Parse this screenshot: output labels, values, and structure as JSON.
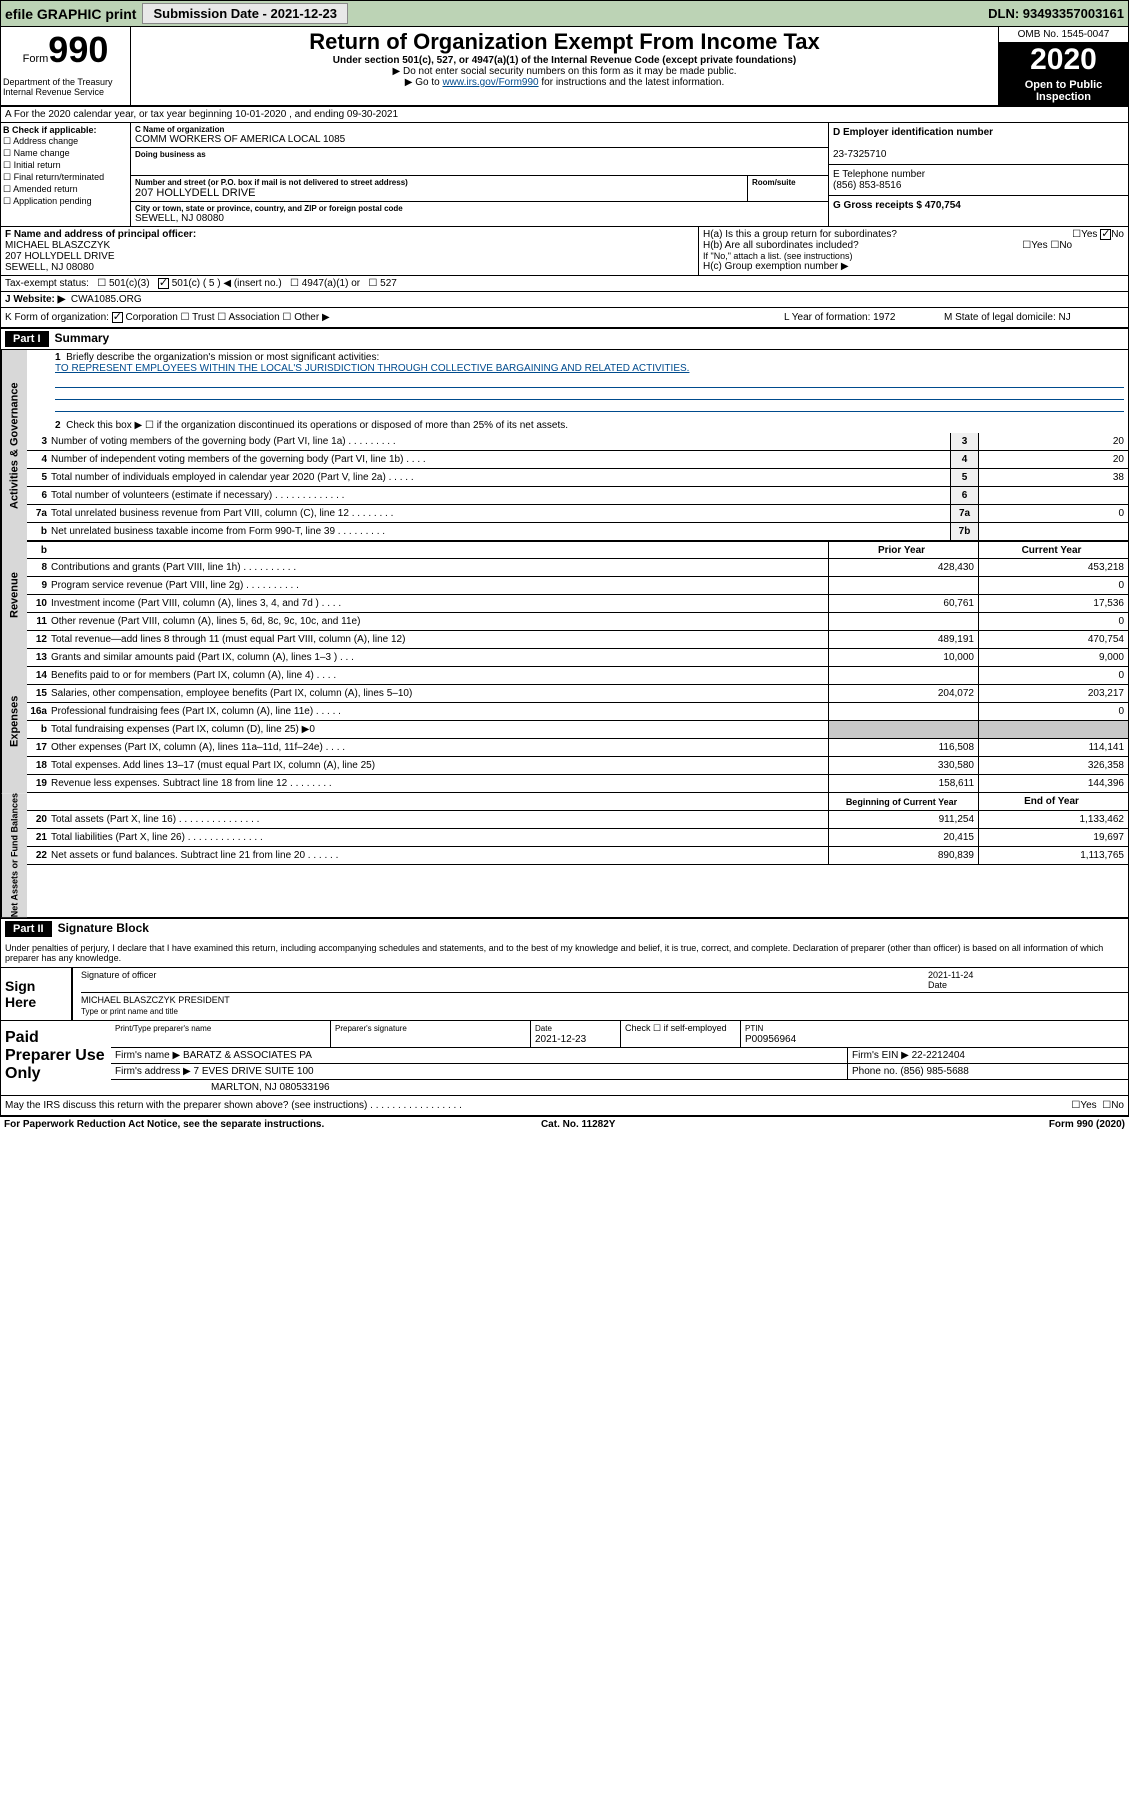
{
  "topbar": {
    "efile": "efile GRAPHIC print",
    "submission_btn": "Submission Date - 2021-12-23",
    "dln": "DLN: 93493357003161"
  },
  "header": {
    "form_label": "Form",
    "form_num": "990",
    "dept": "Department of the Treasury\nInternal Revenue Service",
    "title": "Return of Organization Exempt From Income Tax",
    "sub": "Under section 501(c), 527, or 4947(a)(1) of the Internal Revenue Code (except private foundations)",
    "note1": "▶ Do not enter social security numbers on this form as it may be made public.",
    "note2_pre": "▶ Go to ",
    "note2_link": "www.irs.gov/Form990",
    "note2_post": " for instructions and the latest information.",
    "omb": "OMB No. 1545-0047",
    "year": "2020",
    "open": "Open to Public Inspection"
  },
  "row_a": "A For the 2020 calendar year, or tax year beginning 10-01-2020    , and ending 09-30-2021",
  "sec_b": {
    "check_label": "B Check if applicable:",
    "checks": [
      "Address change",
      "Name change",
      "Initial return",
      "Final return/terminated",
      "Amended return",
      "Application pending"
    ],
    "c_label": "C Name of organization",
    "c_name": "COMM WORKERS OF AMERICA LOCAL 1085",
    "dba_label": "Doing business as",
    "addr_label": "Number and street (or P.O. box if mail is not delivered to street address)",
    "addr": "207 HOLLYDELL DRIVE",
    "room_label": "Room/suite",
    "city_label": "City or town, state or province, country, and ZIP or foreign postal code",
    "city": "SEWELL, NJ  08080",
    "d_label": "D Employer identification number",
    "d_val": "23-7325710",
    "e_label": "E Telephone number",
    "e_val": "(856) 853-8516",
    "g_label": "G Gross receipts $ 470,754"
  },
  "row_fh": {
    "f_label": "F Name and address of principal officer:",
    "f_name": "MICHAEL BLASZCZYK",
    "f_addr1": "207 HOLLYDELL DRIVE",
    "f_addr2": "SEWELL, NJ  08080",
    "ha": "H(a)  Is this a group return for subordinates?",
    "hb": "H(b)  Are all subordinates included?",
    "hb_note": "If \"No,\" attach a list. (see instructions)",
    "hc": "H(c)  Group exemption number ▶",
    "yes": "Yes",
    "no": "No"
  },
  "tax": {
    "label": "Tax-exempt status:",
    "c3": "501(c)(3)",
    "c5": "501(c) ( 5 ) ◀ (insert no.)",
    "a1": "4947(a)(1) or",
    "s527": "527"
  },
  "row_j": {
    "label": "J  Website: ▶",
    "val": "CWA1085.ORG"
  },
  "row_kl": {
    "k": "K Form of organization:",
    "k_corp": "Corporation",
    "k_trust": "Trust",
    "k_assoc": "Association",
    "k_other": "Other ▶",
    "l": "L Year of formation: 1972",
    "m": "M State of legal domicile: NJ"
  },
  "part1": {
    "hdr": "Part I",
    "title": "Summary",
    "l1": "Briefly describe the organization's mission or most significant activities:",
    "mission": "TO REPRESENT EMPLOYEES WITHIN THE LOCAL'S JURISDICTION THROUGH COLLECTIVE BARGAINING AND RELATED ACTIVITIES.",
    "l2": "Check this box ▶ ☐  if the organization discontinued its operations or disposed of more than 25% of its net assets.",
    "gov_label": "Activities & Governance",
    "lines_gov": [
      {
        "n": "3",
        "t": "Number of voting members of the governing body (Part VI, line 1a)  .  .  .  .  .  .  .  .  .",
        "b": "3",
        "v": "20"
      },
      {
        "n": "4",
        "t": "Number of independent voting members of the governing body (Part VI, line 1b)  .  .  .  .",
        "b": "4",
        "v": "20"
      },
      {
        "n": "5",
        "t": "Total number of individuals employed in calendar year 2020 (Part V, line 2a)  .  .  .  .  .",
        "b": "5",
        "v": "38"
      },
      {
        "n": "6",
        "t": "Total number of volunteers (estimate if necessary)  .  .  .  .  .  .  .  .  .  .  .  .  .",
        "b": "6",
        "v": ""
      },
      {
        "n": "7a",
        "t": "Total unrelated business revenue from Part VIII, column (C), line 12  .  .  .  .  .  .  .  .",
        "b": "7a",
        "v": "0"
      },
      {
        "n": "b",
        "t": "Net unrelated business taxable income from Form 990-T, line 39  .  .  .  .  .  .  .  .  .",
        "b": "7b",
        "v": ""
      }
    ],
    "colhdr_prior": "Prior Year",
    "colhdr_curr": "Current Year",
    "rev_label": "Revenue",
    "lines_rev": [
      {
        "n": "8",
        "t": "Contributions and grants (Part VIII, line 1h)  .  .  .  .  .  .  .  .  .  .",
        "p": "428,430",
        "c": "453,218"
      },
      {
        "n": "9",
        "t": "Program service revenue (Part VIII, line 2g)  .  .  .  .  .  .  .  .  .  .",
        "p": "",
        "c": "0"
      },
      {
        "n": "10",
        "t": "Investment income (Part VIII, column (A), lines 3, 4, and 7d )  .  .  .  .",
        "p": "60,761",
        "c": "17,536"
      },
      {
        "n": "11",
        "t": "Other revenue (Part VIII, column (A), lines 5, 6d, 8c, 9c, 10c, and 11e)",
        "p": "",
        "c": "0"
      },
      {
        "n": "12",
        "t": "Total revenue—add lines 8 through 11 (must equal Part VIII, column (A), line 12)",
        "p": "489,191",
        "c": "470,754"
      }
    ],
    "exp_label": "Expenses",
    "lines_exp": [
      {
        "n": "13",
        "t": "Grants and similar amounts paid (Part IX, column (A), lines 1–3 )  .  .  .",
        "p": "10,000",
        "c": "9,000"
      },
      {
        "n": "14",
        "t": "Benefits paid to or for members (Part IX, column (A), line 4)  .  .  .  .",
        "p": "",
        "c": "0"
      },
      {
        "n": "15",
        "t": "Salaries, other compensation, employee benefits (Part IX, column (A), lines 5–10)",
        "p": "204,072",
        "c": "203,217"
      },
      {
        "n": "16a",
        "t": "Professional fundraising fees (Part IX, column (A), line 11e)  .  .  .  .  .",
        "p": "",
        "c": "0"
      },
      {
        "n": "b",
        "t": "Total fundraising expenses (Part IX, column (D), line 25) ▶0",
        "p": "shade",
        "c": "shade"
      },
      {
        "n": "17",
        "t": "Other expenses (Part IX, column (A), lines 11a–11d, 11f–24e)  .  .  .  .",
        "p": "116,508",
        "c": "114,141"
      },
      {
        "n": "18",
        "t": "Total expenses. Add lines 13–17 (must equal Part IX, column (A), line 25)",
        "p": "330,580",
        "c": "326,358"
      },
      {
        "n": "19",
        "t": "Revenue less expenses. Subtract line 18 from line 12  .  .  .  .  .  .  .  .",
        "p": "158,611",
        "c": "144,396"
      }
    ],
    "na_label": "Net Assets or Fund Balances",
    "colhdr_beg": "Beginning of Current Year",
    "colhdr_end": "End of Year",
    "lines_na": [
      {
        "n": "20",
        "t": "Total assets (Part X, line 16)  .  .  .  .  .  .  .  .  .  .  .  .  .  .  .",
        "p": "911,254",
        "c": "1,133,462"
      },
      {
        "n": "21",
        "t": "Total liabilities (Part X, line 26)  .  .  .  .  .  .  .  .  .  .  .  .  .  .",
        "p": "20,415",
        "c": "19,697"
      },
      {
        "n": "22",
        "t": "Net assets or fund balances. Subtract line 21 from line 20  .  .  .  .  .  .",
        "p": "890,839",
        "c": "1,113,765"
      }
    ]
  },
  "part2": {
    "hdr": "Part II",
    "title": "Signature Block",
    "decl": "Under penalties of perjury, I declare that I have examined this return, including accompanying schedules and statements, and to the best of my knowledge and belief, it is true, correct, and complete. Declaration of preparer (other than officer) is based on all information of which preparer has any knowledge.",
    "sign_here": "Sign Here",
    "sig_off": "Signature of officer",
    "sig_date": "2021-11-24",
    "date_lbl": "Date",
    "sig_name": "MICHAEL BLASZCZYK  PRESIDENT",
    "sig_name_lbl": "Type or print name and title",
    "paid": "Paid Preparer Use Only",
    "pname_lbl": "Print/Type preparer's name",
    "psig_lbl": "Preparer's signature",
    "pdate_lbl": "Date",
    "pdate": "2021-12-23",
    "self_lbl": "Check ☐ if self-employed",
    "ptin_lbl": "PTIN",
    "ptin": "P00956964",
    "firm_lbl": "Firm's name      ▶",
    "firm": "BARATZ & ASSOCIATES PA",
    "ein_lbl": "Firm's EIN ▶",
    "ein": "22-2212404",
    "faddr_lbl": "Firm's address ▶",
    "faddr1": "7 EVES DRIVE SUITE 100",
    "faddr2": "MARLTON, NJ  080533196",
    "phone_lbl": "Phone no.",
    "phone": "(856) 985-5688",
    "discuss": "May the IRS discuss this return with the preparer shown above? (see instructions)  .  .  .  .  .  .  .  .  .  .  .  .  .  .  .  .  .",
    "yes": "Yes",
    "no": "No"
  },
  "footer": {
    "l": "For Paperwork Reduction Act Notice, see the separate instructions.",
    "m": "Cat. No. 11282Y",
    "r": "Form 990 (2020)"
  }
}
